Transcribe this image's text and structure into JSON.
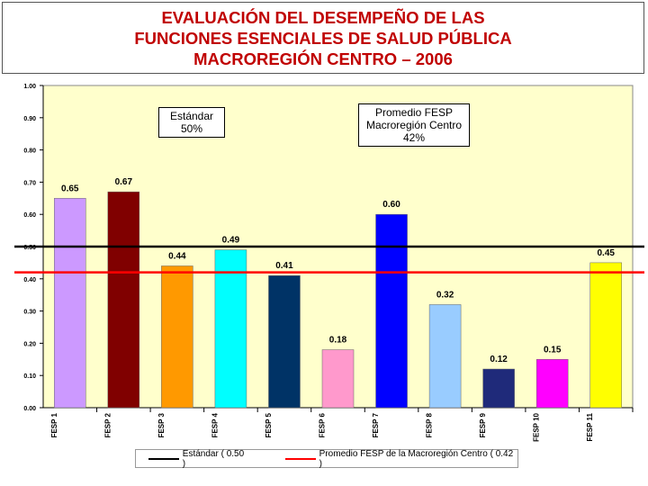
{
  "header": {
    "title_line1": "EVALUACIÓN DEL DESEMPEÑO DE LAS",
    "title_line2": "FUNCIONES ESENCIALES  DE  SALUD  PÚBLICA",
    "title_line3": "MACROREGIÓN CENTRO – 2006"
  },
  "annotations": {
    "standard_line1": "Estándar",
    "standard_line2": "50%",
    "average_line1": "Promedio FESP",
    "average_line2": "Macroregión Centro",
    "average_line3": "42%"
  },
  "legend": {
    "standard_label": "Estándar ( 0.50 )",
    "average_label": "Promedio FESP de la Macroregión Centro ( 0.42 )"
  },
  "chart_data": {
    "type": "bar",
    "title": "EVALUACIÓN DEL DESEMPEÑO DE LAS FUNCIONES ESENCIALES DE SALUD PÚBLICA MACROREGIÓN CENTRO – 2006",
    "categories": [
      "FESP 1",
      "FESP 2",
      "FESP 3",
      "FESP 4",
      "FESP 5",
      "FESP 6",
      "FESP 7",
      "FESP 8",
      "FESP 9",
      "FESP 10",
      "FESP 11"
    ],
    "values": [
      0.65,
      0.67,
      0.44,
      0.49,
      0.41,
      0.18,
      0.6,
      0.32,
      0.12,
      0.15,
      0.45
    ],
    "value_labels": [
      "0.65",
      "0.67",
      "0.44",
      "0.49",
      "0.41",
      "0.18",
      "0.60",
      "0.32",
      "0.12",
      "0.15",
      "0.45"
    ],
    "bar_colors": [
      "#cc99ff",
      "#800000",
      "#ff9900",
      "#00ffff",
      "#003366",
      "#ff99cc",
      "#0000ff",
      "#99ccff",
      "#1f2a7a",
      "#ff00ff",
      "#ffff00"
    ],
    "yticks": [
      "0.00",
      "0.10",
      "0.20",
      "0.30",
      "0.40",
      "0.50",
      "0.60",
      "0.70",
      "0.80",
      "0.90",
      "1.00"
    ],
    "ylim": [
      0,
      1.0
    ],
    "reference_lines": [
      {
        "name": "Estándar",
        "value": 0.5,
        "color": "#000000"
      },
      {
        "name": "Promedio FESP Macroregión Centro",
        "value": 0.42,
        "color": "#ff0000"
      }
    ],
    "plot_background": "#ffffcc",
    "xlabel": "",
    "ylabel": ""
  }
}
